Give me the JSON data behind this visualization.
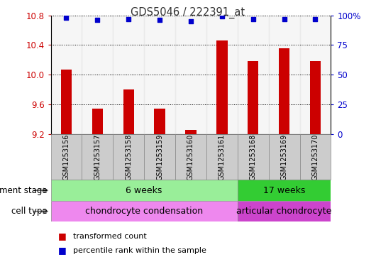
{
  "title": "GDS5046 / 222391_at",
  "samples": [
    "GSM1253156",
    "GSM1253157",
    "GSM1253158",
    "GSM1253159",
    "GSM1253160",
    "GSM1253161",
    "GSM1253168",
    "GSM1253169",
    "GSM1253170"
  ],
  "bar_values": [
    10.07,
    9.54,
    9.8,
    9.54,
    9.25,
    10.46,
    10.18,
    10.36,
    10.18
  ],
  "percentile_values": [
    98,
    96,
    97,
    96,
    95,
    99,
    97,
    97,
    97
  ],
  "y_min": 9.2,
  "y_max": 10.8,
  "y_ticks": [
    9.2,
    9.6,
    10.0,
    10.4,
    10.8
  ],
  "y_right_ticks": [
    0,
    25,
    50,
    75,
    100
  ],
  "y_right_labels": [
    "0",
    "25",
    "50",
    "75",
    "100%"
  ],
  "bar_color": "#cc0000",
  "dot_color": "#0000cc",
  "bar_baseline": 9.2,
  "dev_stage_label": "development stage",
  "cell_type_label": "cell type",
  "group1_label": "6 weeks",
  "group2_label": "17 weeks",
  "group1_color": "#99ee99",
  "group2_color": "#33cc33",
  "cell1_label": "chondrocyte condensation",
  "cell2_label": "articular chondrocyte",
  "cell1_color": "#ee88ee",
  "cell2_color": "#cc44cc",
  "group1_count": 6,
  "group2_count": 3,
  "legend_bar_label": "transformed count",
  "legend_dot_label": "percentile rank within the sample",
  "title_color": "#333333",
  "axis_color_left": "#cc0000",
  "axis_color_right": "#0000cc",
  "sample_box_color": "#cccccc",
  "sample_box_edge": "#888888"
}
